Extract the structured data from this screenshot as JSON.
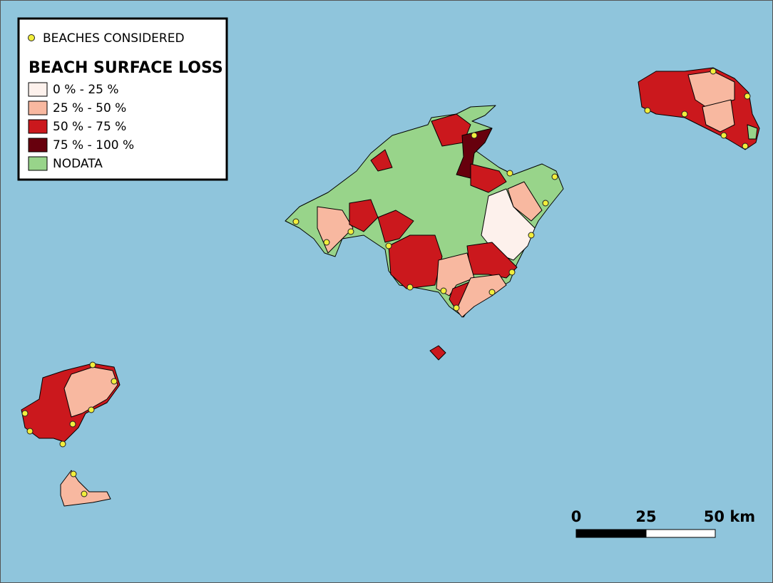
{
  "legend": {
    "point_label": "BEACHES CONSIDERED",
    "title": "BEACH SURFACE LOSS",
    "classes": [
      {
        "label": "0 % - 25 %",
        "color": "#fdf1ec"
      },
      {
        "label": "25 % - 50 %",
        "color": "#f8b8a0"
      },
      {
        "label": "50 % - 75 %",
        "color": "#cb181d"
      },
      {
        "label": "75 % - 100 %",
        "color": "#67000d"
      },
      {
        "label": "NODATA",
        "color": "#98d48a"
      }
    ]
  },
  "scale_bar": {
    "labels": [
      "0",
      "25",
      "50 km"
    ]
  }
}
